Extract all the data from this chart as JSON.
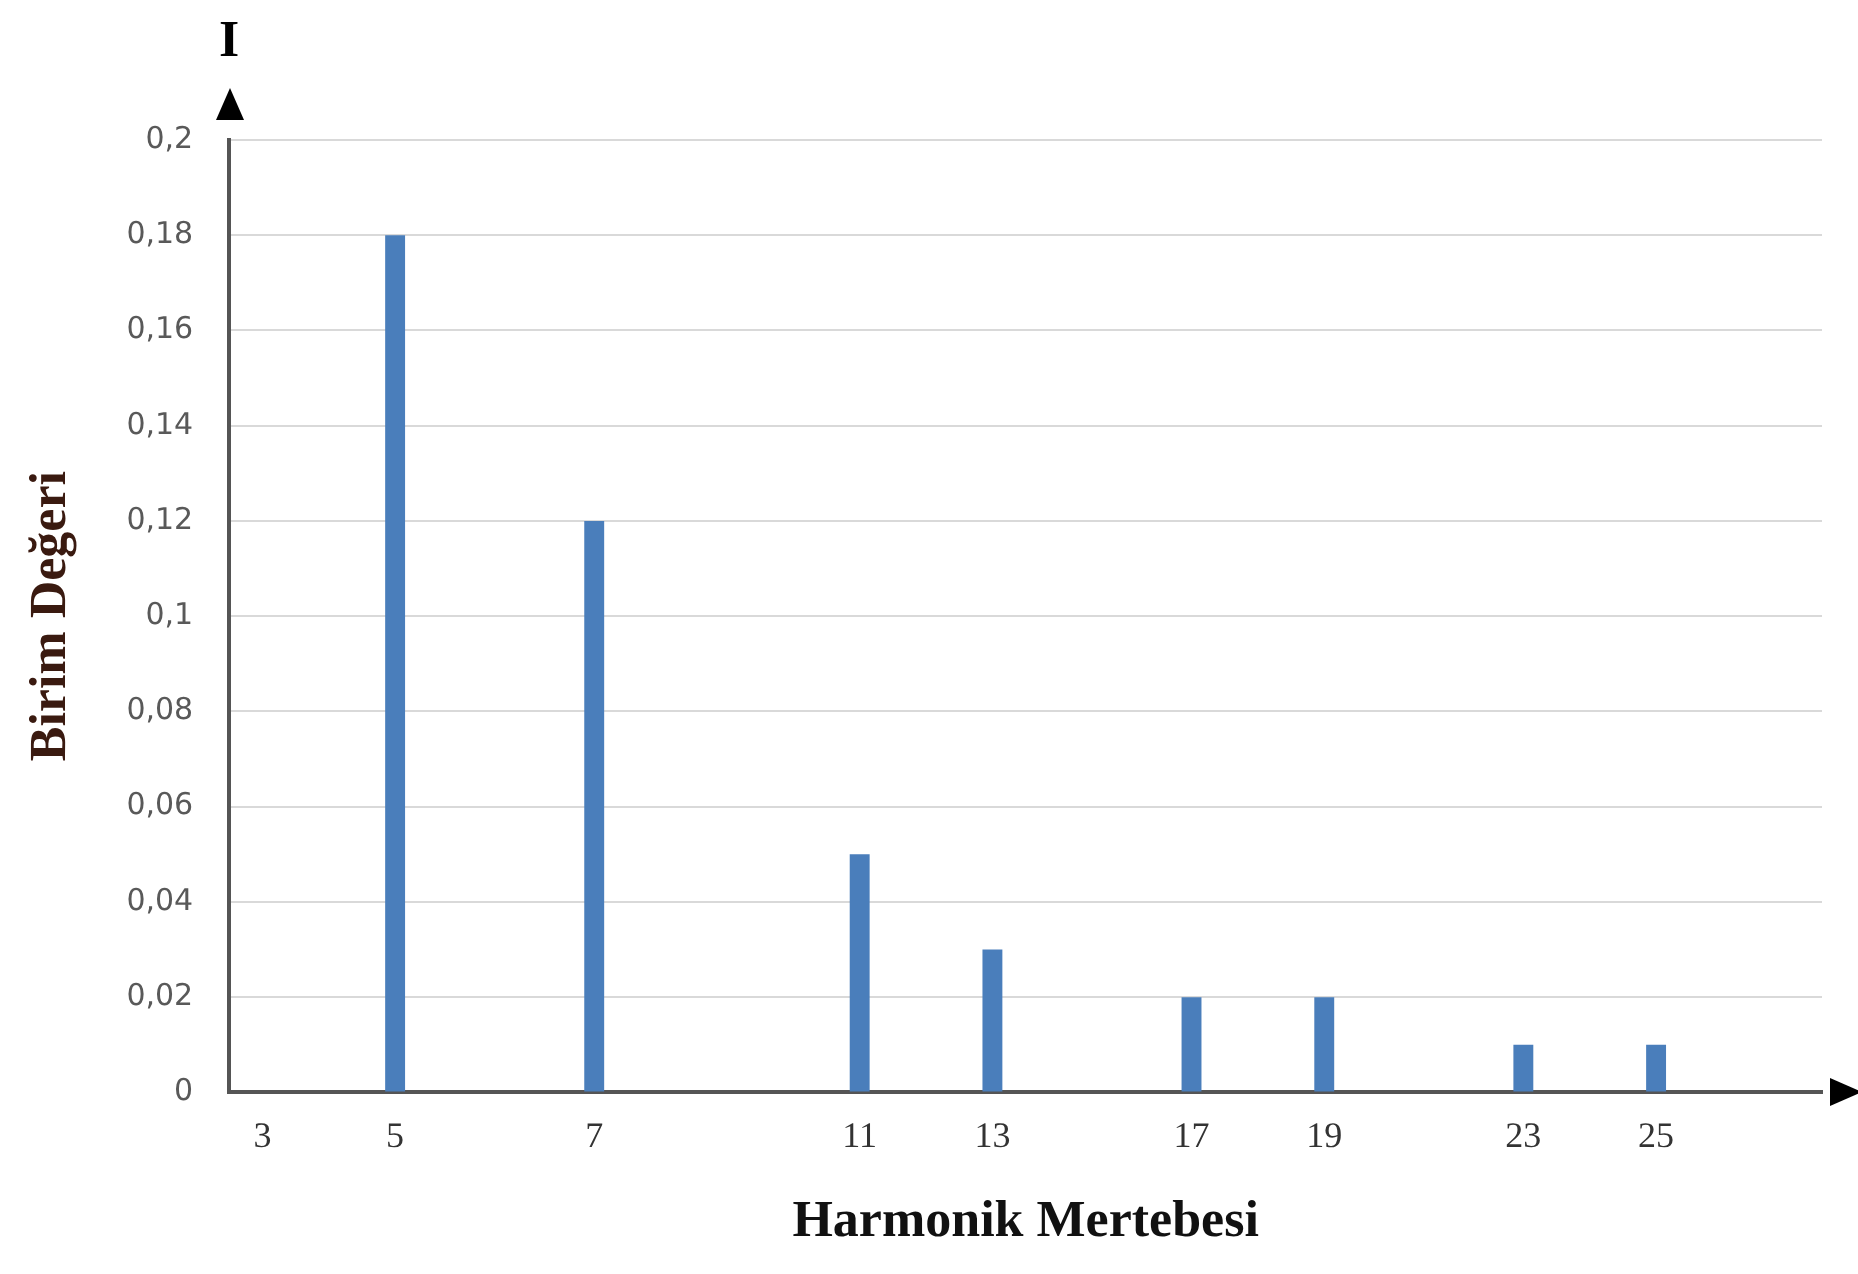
{
  "chart_data": {
    "type": "bar",
    "xlabel": "Harmonik Mertebesi",
    "ylabel": "Birim Değeri",
    "annotations": [
      "I"
    ],
    "categories": [
      "3",
      null,
      "5",
      null,
      null,
      "7",
      null,
      null,
      null,
      "11",
      null,
      "13",
      null,
      null,
      "17",
      null,
      "19",
      null,
      null,
      "23",
      null,
      "25",
      null,
      null
    ],
    "values": [
      0,
      null,
      0.18,
      null,
      null,
      0.12,
      null,
      null,
      null,
      0.05,
      null,
      0.03,
      null,
      null,
      0.02,
      null,
      0.02,
      null,
      null,
      0.01,
      null,
      0.01,
      null,
      null
    ],
    "color": "#4a7ebb",
    "ylim": [
      0,
      0.2
    ],
    "yticks": [
      {
        "value": 0,
        "label": "0"
      },
      {
        "value": 0.02,
        "label": "0,02"
      },
      {
        "value": 0.04,
        "label": "0,04"
      },
      {
        "value": 0.06,
        "label": "0,06"
      },
      {
        "value": 0.08,
        "label": "0,08"
      },
      {
        "value": 0.1,
        "label": "0,1"
      },
      {
        "value": 0.12,
        "label": "0,12"
      },
      {
        "value": 0.14,
        "label": "0,14"
      },
      {
        "value": 0.16,
        "label": "0,16"
      },
      {
        "value": 0.18,
        "label": "0,18"
      },
      {
        "value": 0.2,
        "label": "0,2"
      }
    ],
    "grid": "y",
    "legend": false
  }
}
